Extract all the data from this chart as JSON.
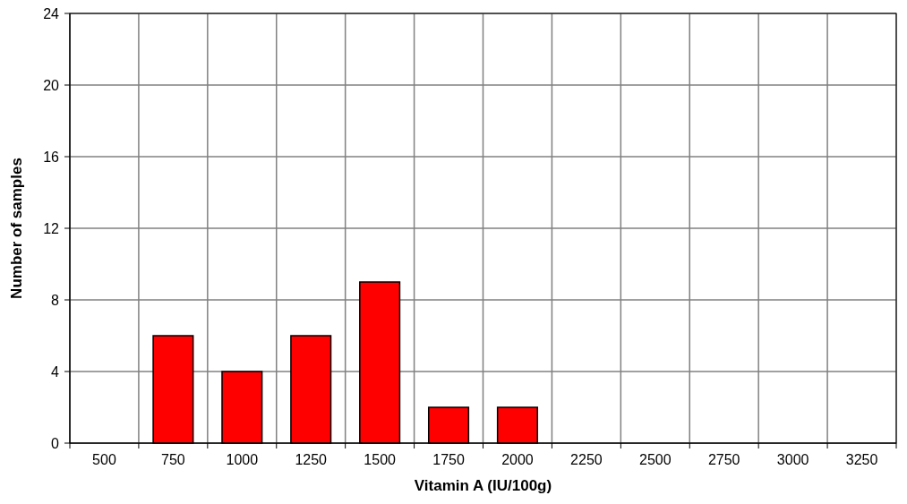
{
  "chart_data": {
    "type": "bar",
    "xlabel": "Vitamin A (IU/100g)",
    "ylabel": "Number of samples",
    "categories": [
      "500",
      "750",
      "1000",
      "1250",
      "1500",
      "1750",
      "2000",
      "2250",
      "2500",
      "2750",
      "3000",
      "3250"
    ],
    "values": [
      0,
      6,
      4,
      6,
      9,
      2,
      2,
      0,
      0,
      0,
      0,
      0
    ],
    "color": "#ff0000",
    "ylim": [
      0,
      24
    ],
    "yticks": [
      0,
      4,
      8,
      12,
      16,
      20,
      24
    ],
    "grid": true,
    "data_labels": false
  }
}
